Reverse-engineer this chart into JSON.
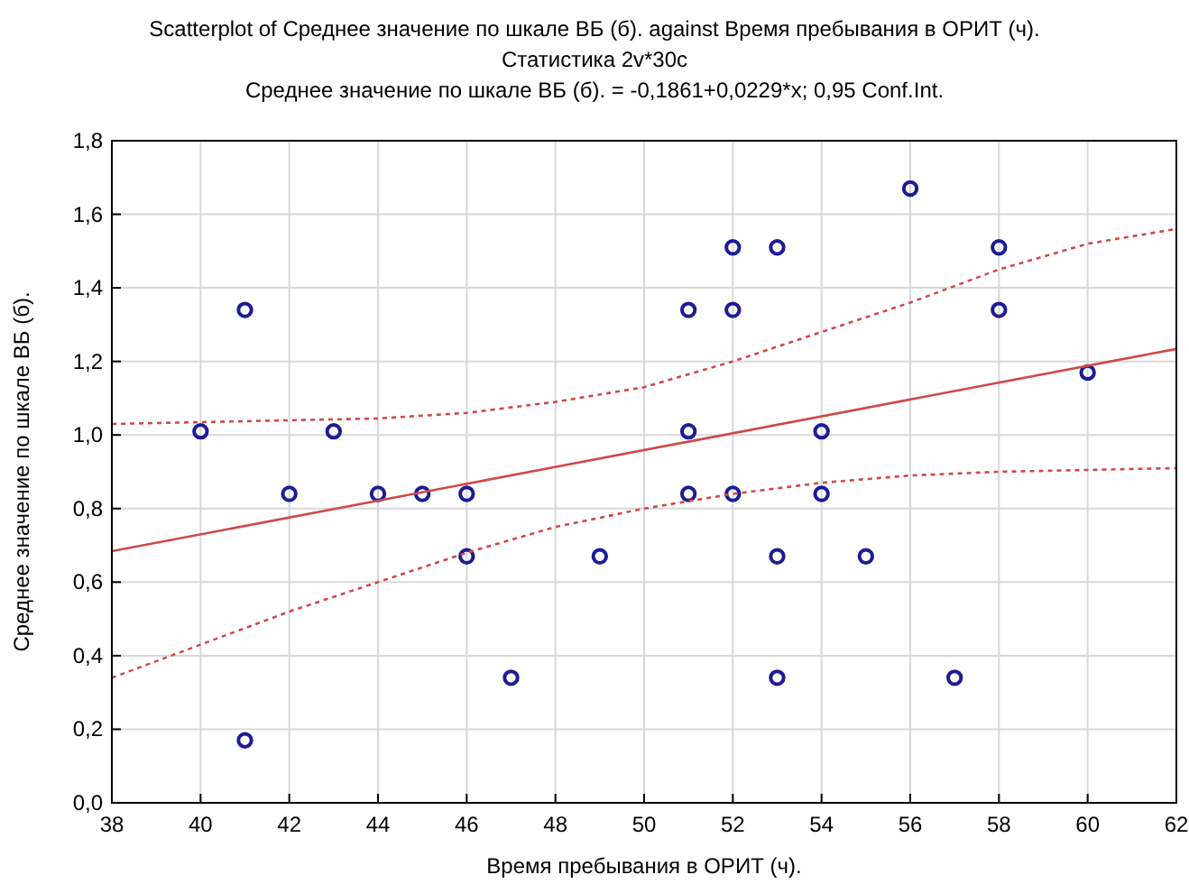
{
  "chart_data": {
    "type": "scatter",
    "title": "Scatterplot of Среднее значение по шкале ВБ (б). against Время пребывания в ОРИТ (ч).",
    "subtitle": "Статистика 2v*30c",
    "annotations": [
      "Среднее значение по шкале ВБ (б). = -0,1861+0,0229*x; 0,95 Conf.Int."
    ],
    "xlabel": "Время пребывания в ОРИТ (ч).",
    "ylabel": "Среднее значение по шкале ВБ (б).",
    "xlim": [
      38,
      62
    ],
    "ylim": [
      0,
      1.8
    ],
    "xticks": [
      38,
      40,
      42,
      44,
      46,
      48,
      50,
      52,
      54,
      56,
      58,
      60,
      62
    ],
    "yticks": [
      {
        "value": 0,
        "label": "0,0"
      },
      {
        "value": 0.2,
        "label": "0,2"
      },
      {
        "value": 0.4,
        "label": "0,4"
      },
      {
        "value": 0.6,
        "label": "0,6"
      },
      {
        "value": 0.8,
        "label": "0,8"
      },
      {
        "value": 1,
        "label": "1,0"
      },
      {
        "value": 1.2,
        "label": "1,2"
      },
      {
        "value": 1.4,
        "label": "1,4"
      },
      {
        "value": 1.6,
        "label": "1,6"
      },
      {
        "value": 1.8,
        "label": "1,8"
      }
    ],
    "grid": true,
    "series": [
      {
        "marker": "circle",
        "color": "#1c1c96",
        "x": [
          40,
          41,
          41,
          42,
          43,
          44,
          45,
          46,
          46,
          47,
          49,
          51,
          51,
          51,
          52,
          52,
          52,
          53,
          53,
          53,
          54,
          54,
          55,
          56,
          57,
          58,
          58,
          60
        ],
        "values": [
          1.01,
          1.34,
          0.17,
          0.84,
          1.01,
          0.84,
          0.84,
          0.84,
          0.67,
          0.34,
          0.67,
          1.34,
          1.01,
          0.84,
          1.51,
          1.34,
          0.84,
          1.51,
          0.67,
          0.34,
          1.01,
          0.84,
          0.67,
          1.67,
          0.34,
          1.51,
          1.34,
          1.17
        ]
      },
      {
        "type": "line",
        "color": "#d04848",
        "line_style": "solid",
        "x": [
          38,
          62
        ],
        "values": [
          0.684,
          1.234
        ]
      },
      {
        "type": "line",
        "color": "#d04848",
        "line_style": "dotted",
        "x": [
          38,
          40,
          42,
          44,
          46,
          48,
          50,
          52,
          54,
          56,
          58,
          60,
          62
        ],
        "values": [
          1.03,
          1.035,
          1.04,
          1.045,
          1.06,
          1.09,
          1.13,
          1.2,
          1.28,
          1.36,
          1.45,
          1.52,
          1.56
        ]
      },
      {
        "type": "line",
        "color": "#d04848",
        "line_style": "dotted",
        "x": [
          38,
          40,
          42,
          44,
          46,
          48,
          50,
          52,
          54,
          56,
          58,
          60,
          62
        ],
        "values": [
          0.34,
          0.43,
          0.52,
          0.6,
          0.68,
          0.75,
          0.8,
          0.84,
          0.87,
          0.89,
          0.9,
          0.905,
          0.91
        ]
      }
    ]
  }
}
